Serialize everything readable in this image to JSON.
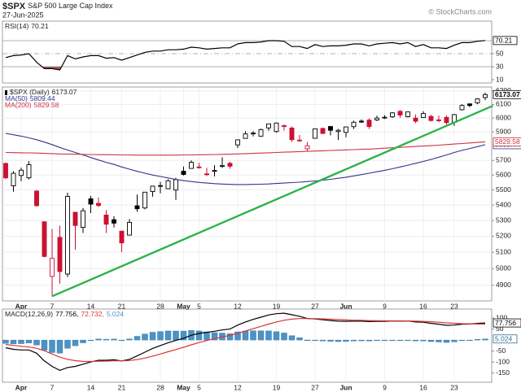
{
  "header": {
    "symbol": "$SPX",
    "name": "S&P 500 Large Cap Index",
    "date": "27-Jun-2025",
    "credit": "© StockCharts.com"
  },
  "chart_data": [
    {
      "type": "line",
      "title": "RSI(14)",
      "ylim": [
        5,
        100
      ],
      "yticks": [
        10,
        30,
        50
      ],
      "reference_lines": [
        {
          "value": 70,
          "style": "solid"
        },
        {
          "value": 50,
          "style": "dashed"
        },
        {
          "value": 30,
          "style": "solid"
        }
      ],
      "oversold_fill": "#a85a55",
      "series": [
        {
          "color": "#000000",
          "last_box": true,
          "values": [
            44,
            47,
            48,
            50,
            37,
            27,
            27,
            25,
            47,
            42,
            45,
            47,
            47,
            43,
            44,
            40,
            44,
            48,
            52,
            54,
            54,
            56,
            56,
            57,
            60,
            59,
            57,
            58,
            59,
            59,
            65,
            67,
            67,
            68,
            70,
            70,
            69,
            61,
            61,
            58,
            64,
            61,
            62,
            62,
            63,
            65,
            65,
            62,
            65,
            66,
            67,
            65,
            67,
            61,
            64,
            59,
            59,
            58,
            63,
            67,
            67,
            69,
            70.21
          ]
        }
      ]
    },
    {
      "type": "candlestick",
      "log": true,
      "grid": true,
      "ylim": [
        4808,
        6230
      ],
      "yticks": [
        4900,
        5000,
        5100,
        5200,
        5300,
        5400,
        5500,
        5600,
        5700,
        5900,
        6000,
        6100,
        6200
      ],
      "categories": [
        null,
        null,
        "Apr",
        null,
        null,
        null,
        "7",
        null,
        null,
        null,
        null,
        "14",
        null,
        null,
        null,
        "21",
        null,
        null,
        null,
        null,
        "28",
        null,
        null,
        "May",
        null,
        "5",
        null,
        null,
        null,
        null,
        "12",
        null,
        null,
        null,
        null,
        "19",
        null,
        null,
        null,
        null,
        "27",
        null,
        null,
        null,
        "Jun",
        null,
        null,
        null,
        null,
        "9",
        null,
        null,
        null,
        null,
        "16",
        null,
        null,
        null,
        "23",
        null,
        null,
        null,
        null
      ],
      "up_color": "#000000",
      "down_color": "#cc1133",
      "trendline": {
        "color": "#2db34a",
        "points": [
          [
            6,
            4835
          ],
          [
            63,
            6090
          ]
        ]
      },
      "series": [
        {
          "name": "$SPX (Daily)",
          "last_box": true,
          "open": [
            5679,
            5527,
            5597,
            5581,
            5492,
            5292,
            4953,
            5193,
            4967,
            5353,
            5256,
            5441,
            5411,
            5335,
            5305,
            5232,
            5207,
            5395,
            5381,
            5489,
            5529,
            5508,
            5499,
            5626,
            5645,
            5655,
            5608,
            5627,
            5663,
            5680,
            5808,
            5854,
            5887,
            5870,
            5929,
            5903,
            5945,
            5928,
            5841,
            5781,
            5855,
            5925,
            5939,
            5903,
            5897,
            5938,
            5978,
            5985,
            5987,
            6004,
            6009,
            6049,
            6010,
            6000,
            6004,
            6012,
            5987,
            6005,
            5970,
            6061,
            6104,
            6112,
            6151
          ],
          "high": [
            5685,
            5627,
            5650,
            5695,
            5500,
            5293,
            5246,
            5267,
            5481,
            5353,
            5381,
            5460,
            5450,
            5367,
            5328,
            5232,
            5309,
            5469,
            5485,
            5528,
            5554,
            5571,
            5581,
            5658,
            5700,
            5683,
            5649,
            5668,
            5721,
            5691,
            5845,
            5906,
            5906,
            5924,
            5959,
            5968,
            5953,
            5939,
            5878,
            5829,
            5922,
            5931,
            5943,
            5922,
            5938,
            5981,
            5991,
            5999,
            6017,
            6021,
            6043,
            6059,
            6045,
            6026,
            6050,
            6024,
            6018,
            6019,
            6030,
            6102,
            6108,
            6146,
            6187
          ],
          "low": [
            5572,
            5488,
            5558,
            5571,
            5390,
            5069,
            4835,
            4910,
            4949,
            5115,
            5220,
            5348,
            5387,
            5220,
            5255,
            5101,
            5207,
            5356,
            5372,
            5455,
            5478,
            5505,
            5434,
            5597,
            5645,
            5644,
            5593,
            5591,
            5650,
            5643,
            5786,
            5853,
            5868,
            5867,
            5908,
            5895,
            5910,
            5830,
            5829,
            5767,
            5853,
            5886,
            5875,
            5843,
            5862,
            5921,
            5966,
            5921,
            5978,
            5994,
            6001,
            6002,
            6004,
            5963,
            6004,
            5975,
            5971,
            5953,
            5944,
            6056,
            6080,
            6102,
            6132
          ],
          "close": [
            5581,
            5612,
            5633,
            5671,
            5396,
            5074,
            5062,
            4982,
            5457,
            5268,
            5363,
            5406,
            5397,
            5276,
            5283,
            5158,
            5288,
            5376,
            5485,
            5525,
            5529,
            5561,
            5569,
            5604,
            5687,
            5650,
            5607,
            5631,
            5664,
            5660,
            5844,
            5886,
            5892,
            5917,
            5958,
            5964,
            5940,
            5845,
            5842,
            5802,
            5922,
            5889,
            5912,
            5912,
            5936,
            5970,
            5971,
            5939,
            6000,
            6006,
            6038,
            6022,
            6045,
            5977,
            6033,
            5982,
            5981,
            5967,
            6025,
            6092,
            6092,
            6141,
            6173.07
          ]
        },
        {
          "name": "MA(50)",
          "color": "#33338f",
          "last_box": true,
          "values": [
            5890,
            5880,
            5870,
            5858,
            5845,
            5828,
            5810,
            5790,
            5772,
            5755,
            5738,
            5720,
            5703,
            5687,
            5672,
            5655,
            5640,
            5625,
            5612,
            5600,
            5590,
            5580,
            5570,
            5562,
            5556,
            5550,
            5546,
            5542,
            5539,
            5537,
            5536,
            5536,
            5537,
            5538,
            5540,
            5543,
            5546,
            5549,
            5552,
            5556,
            5560,
            5565,
            5571,
            5578,
            5585,
            5594,
            5603,
            5612,
            5622,
            5632,
            5643,
            5655,
            5667,
            5680,
            5693,
            5707,
            5722,
            5738,
            5755,
            5770,
            5783,
            5796,
            5809.44
          ]
        },
        {
          "name": "MA(200)",
          "color": "#cc3344",
          "last_box": true,
          "values": [
            5755,
            5754,
            5753,
            5752,
            5751,
            5749,
            5747,
            5745,
            5744,
            5743,
            5742,
            5741,
            5740,
            5740,
            5739,
            5738,
            5738,
            5737,
            5737,
            5737,
            5737,
            5737,
            5737,
            5738,
            5738,
            5739,
            5740,
            5741,
            5742,
            5743,
            5745,
            5747,
            5749,
            5751,
            5753,
            5755,
            5757,
            5759,
            5761,
            5763,
            5765,
            5767,
            5769,
            5771,
            5773,
            5775,
            5777,
            5779,
            5782,
            5785,
            5788,
            5791,
            5794,
            5797,
            5800,
            5803,
            5806,
            5810,
            5814,
            5818,
            5822,
            5826,
            5829.58
          ]
        }
      ]
    },
    {
      "type": "line",
      "title": "MACD(12,26,9)",
      "ylim": [
        -192,
        141
      ],
      "yticks": [
        -150,
        -100,
        -50,
        50,
        100
      ],
      "categories": [
        null,
        null,
        "Apr",
        null,
        null,
        null,
        "7",
        null,
        null,
        null,
        null,
        "14",
        null,
        null,
        null,
        "21",
        null,
        null,
        null,
        null,
        "28",
        null,
        null,
        "May",
        null,
        "5",
        null,
        null,
        null,
        null,
        "12",
        null,
        null,
        null,
        null,
        "19",
        null,
        null,
        null,
        null,
        "27",
        null,
        null,
        null,
        "Jun",
        null,
        null,
        null,
        null,
        "9",
        null,
        null,
        null,
        null,
        "16",
        null,
        null,
        null,
        "23",
        null,
        null,
        null,
        null
      ],
      "series": [
        {
          "kind": "bar",
          "color": "#4a93c6",
          "legend_label": "5.024",
          "last_box": true,
          "values": [
            -15,
            -17.6,
            -16.5,
            -13.2,
            -22.6,
            -46.1,
            -56.9,
            -59.9,
            -37.5,
            -26,
            -12.8,
            -2.2,
            4.6,
            3.7,
            4.6,
            -0.3,
            5.3,
            17,
            27.2,
            35.4,
            38.7,
            41.4,
            41.1,
            40.9,
            43.9,
            41.5,
            37.2,
            33.8,
            31.8,
            28.6,
            37.3,
            41,
            42.4,
            41.9,
            41.5,
            38,
            32,
            20,
            10.4,
            0.3,
            -1.4,
            -4.3,
            -5.9,
            -7.1,
            -6.5,
            -4.4,
            -3.5,
            -4.4,
            -2.7,
            -2.2,
            -0.2,
            -0.9,
            0.1,
            -3.9,
            -3.9,
            -7.1,
            -8.9,
            -11.1,
            -8.1,
            -2.5,
            -0.6,
            3,
            5.024
          ]
        },
        {
          "kind": "line",
          "color": "#000000",
          "legend_label": "77.756,",
          "last_box": true,
          "values": [
            -35,
            -42,
            -45,
            -45,
            -60,
            -95,
            -120,
            -138,
            -125,
            -120,
            -110,
            -100,
            -92,
            -92,
            -90,
            -95,
            -88,
            -72,
            -55,
            -38,
            -25,
            -12,
            -2,
            8,
            22,
            30,
            35,
            40,
            46,
            50,
            68,
            82,
            94,
            104,
            114,
            120,
            122,
            115,
            108,
            98,
            96,
            92,
            89,
            86,
            85,
            86,
            86,
            84,
            85,
            85,
            87,
            86,
            87,
            82,
            81,
            76,
            72,
            67,
            68,
            72,
            73,
            76,
            77.756
          ]
        },
        {
          "kind": "line",
          "color": "#dd3333",
          "legend_label": "72.732,",
          "values": [
            -20,
            -24.4,
            -28.5,
            -31.8,
            -37.4,
            -48.9,
            -63.1,
            -78.1,
            -87.5,
            -94,
            -97.2,
            -97.8,
            -96.6,
            -95.7,
            -94.6,
            -94.7,
            -93.3,
            -89,
            -82.2,
            -73.4,
            -63.7,
            -53.4,
            -43.1,
            -32.9,
            -21.9,
            -11.5,
            -2.2,
            6.2,
            14.2,
            21.4,
            30.7,
            41,
            51.6,
            62.1,
            72.5,
            82,
            90,
            95,
            97.6,
            97.7,
            97.4,
            96.3,
            94.9,
            93.1,
            91.5,
            90.4,
            89.5,
            88.4,
            87.7,
            87.2,
            87.2,
            86.9,
            86.9,
            85.9,
            84.9,
            83.1,
            80.9,
            78.1,
            76.1,
            74.5,
            73.6,
            73,
            72.732
          ]
        }
      ]
    }
  ]
}
